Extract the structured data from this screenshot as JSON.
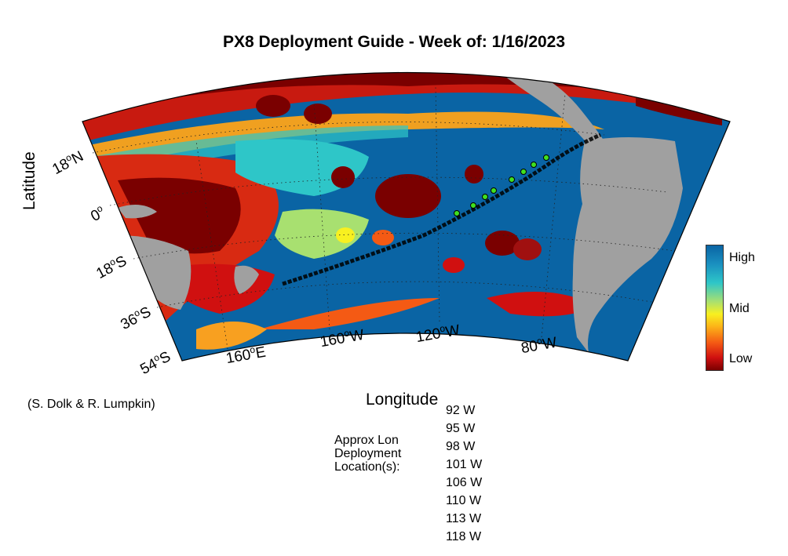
{
  "title": "PX8 Deployment Guide - Week of: 1/16/2023",
  "axes": {
    "xlabel": "Longitude",
    "ylabel": "Latitude"
  },
  "lat_ticks": [
    "18",
    "0",
    "18",
    "36",
    "54"
  ],
  "lat_suffix": [
    "N",
    "",
    "S",
    "S",
    "S"
  ],
  "lon_ticks": [
    "160",
    "160",
    "120",
    "80"
  ],
  "lon_suffix": [
    "E",
    "W",
    "W",
    "W"
  ],
  "degree_mark": "o",
  "colorbar": {
    "high": "High",
    "mid": "Mid",
    "low": "Low"
  },
  "credit": "(S. Dolk & R. Lumpkin)",
  "deployment": {
    "label_lines": [
      "Approx Lon",
      "Deployment",
      "Location(s):"
    ],
    "longitudes": [
      "92 W",
      "95 W",
      "98 W",
      "101 W",
      "106 W",
      "110 W",
      "113 W",
      "118 W"
    ]
  },
  "colors": {
    "land": "#a0a0a0",
    "low": "#7a0000",
    "high": "#0a64a4",
    "deploy_point": "#40e020"
  }
}
